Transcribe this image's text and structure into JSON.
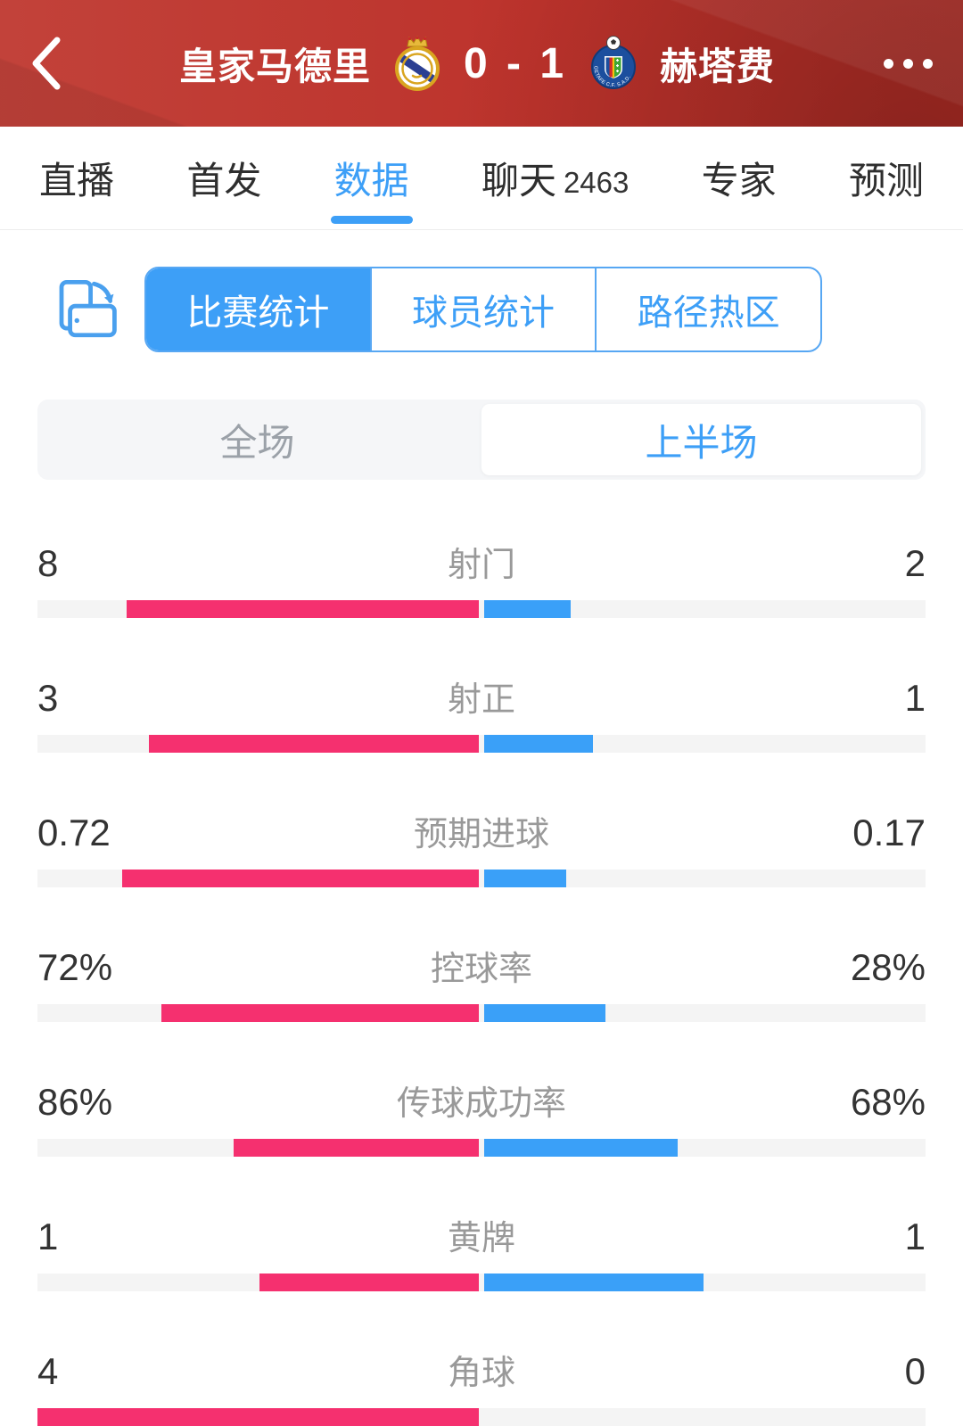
{
  "header": {
    "home_team": "皇家马德里",
    "away_team": "赫塔费",
    "score": "0 - 1",
    "away_badge_text": "GETAFE C.F. S.A.D."
  },
  "tabs": [
    {
      "label": "直播",
      "active": false
    },
    {
      "label": "首发",
      "active": false
    },
    {
      "label": "数据",
      "active": true
    },
    {
      "label": "聊天",
      "count": "2463",
      "active": false
    },
    {
      "label": "专家",
      "active": false
    },
    {
      "label": "预测",
      "active": false
    }
  ],
  "stat_tabs": [
    {
      "label": "比赛统计",
      "active": true
    },
    {
      "label": "球员统计",
      "active": false
    },
    {
      "label": "路径热区",
      "active": false
    }
  ],
  "period_toggle": [
    {
      "label": "全场",
      "selected": false
    },
    {
      "label": "上半场",
      "selected": true
    }
  ],
  "stats": [
    {
      "label": "射门",
      "home": "8",
      "away": "2",
      "home_value": 8,
      "away_value": 2
    },
    {
      "label": "射正",
      "home": "3",
      "away": "1",
      "home_value": 3,
      "away_value": 1
    },
    {
      "label": "预期进球",
      "home": "0.72",
      "away": "0.17",
      "home_value": 0.72,
      "away_value": 0.17
    },
    {
      "label": "控球率",
      "home": "72%",
      "away": "28%",
      "home_value": 72,
      "away_value": 28
    },
    {
      "label": "传球成功率",
      "home": "86%",
      "away": "68%",
      "home_value": 86,
      "away_value": 68
    },
    {
      "label": "黄牌",
      "home": "1",
      "away": "1",
      "home_value": 1,
      "away_value": 1
    },
    {
      "label": "角球",
      "home": "4",
      "away": "0",
      "home_value": 4,
      "away_value": 0
    }
  ],
  "colors": {
    "header_bg": "#bd332c",
    "accent": "#3d9ff7",
    "home_bar": "#f5306f",
    "away_bar": "#3aa0f8",
    "bar_track": "#f4f4f4"
  },
  "chart_data": {
    "type": "bar",
    "title": "比赛统计 — 上半场 (皇家马德里 0 - 1 赫塔费)",
    "categories": [
      "射门",
      "射正",
      "预期进球",
      "控球率",
      "传球成功率",
      "黄牌",
      "角球"
    ],
    "series": [
      {
        "name": "皇家马德里",
        "values": [
          8,
          3,
          0.72,
          72,
          86,
          1,
          4
        ]
      },
      {
        "name": "赫塔费",
        "values": [
          2,
          1,
          0.17,
          28,
          68,
          1,
          0
        ]
      }
    ],
    "legend_position": "none",
    "grid": false
  }
}
